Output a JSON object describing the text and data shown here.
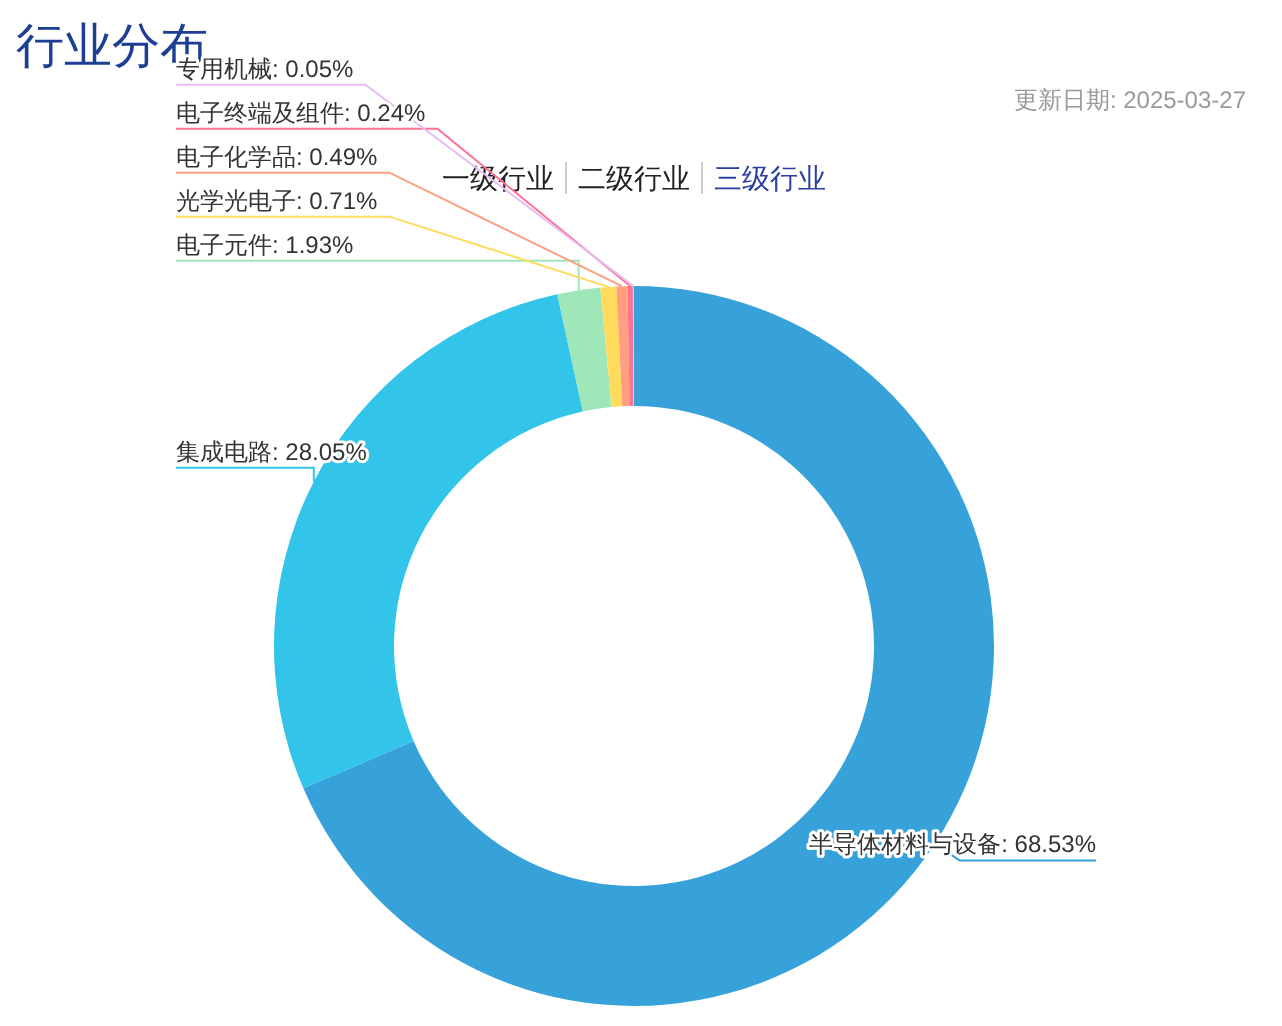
{
  "chart_data": {
    "type": "donut",
    "title": "行业分布",
    "subtitle": "更新日期: 2025-03-27",
    "annotations": [
      "一级行业",
      "二级行业",
      "三级行业"
    ],
    "categories": [
      "半导体材料与设备",
      "集成电路",
      "电子元件",
      "光学光电子",
      "电子化学品",
      "电子终端及组件",
      "专用机械"
    ],
    "values": [
      68.53,
      28.05,
      1.93,
      0.71,
      0.49,
      0.24,
      0.05
    ],
    "value_labels": [
      "68.53%",
      "28.05%",
      "1.93%",
      "0.71%",
      "0.49%",
      "0.24%",
      "0.05%"
    ],
    "colors": [
      "#37a2da",
      "#32c5e9",
      "#9fe6b8",
      "#ffdb5c",
      "#ff9f7f",
      "#fb7293",
      "#e7bcf3"
    ]
  }
}
